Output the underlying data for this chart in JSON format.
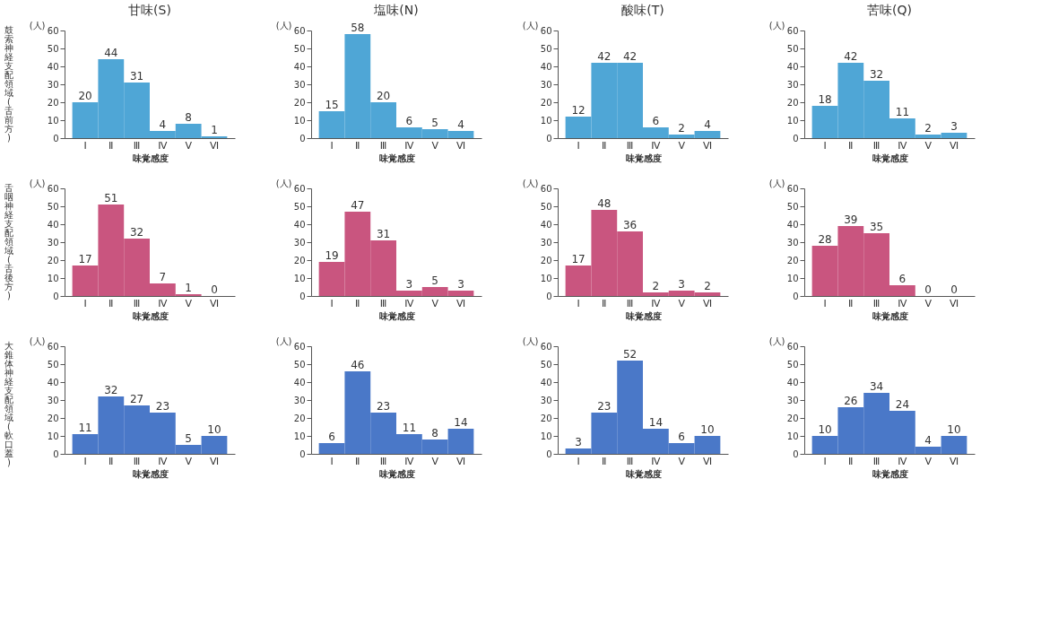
{
  "chart_data": [
    {
      "type": "bar",
      "title": "甘味(S)",
      "annotations": [
        "鼓索神経支配領域(舌前方)"
      ],
      "ylabel": "(人)",
      "xlabel": "味覚感度",
      "categories": [
        "Ⅰ",
        "Ⅱ",
        "Ⅲ",
        "Ⅳ",
        "Ⅴ",
        "Ⅵ"
      ],
      "values": [
        20,
        44,
        31,
        4,
        8,
        1
      ],
      "color": "#4fa6d6",
      "ylim": [
        0,
        60
      ],
      "yticks": [
        0,
        10,
        20,
        30,
        40,
        50,
        60
      ],
      "data_labels": true,
      "grid": false
    },
    {
      "type": "bar",
      "title": "塩味(N)",
      "ylabel": "(人)",
      "xlabel": "味覚感度",
      "categories": [
        "Ⅰ",
        "Ⅱ",
        "Ⅲ",
        "Ⅳ",
        "Ⅴ",
        "Ⅵ"
      ],
      "values": [
        15,
        58,
        20,
        6,
        5,
        4
      ],
      "color": "#4fa6d6",
      "ylim": [
        0,
        60
      ],
      "yticks": [
        0,
        10,
        20,
        30,
        40,
        50,
        60
      ],
      "data_labels": true,
      "grid": false
    },
    {
      "type": "bar",
      "title": "酸味(T)",
      "ylabel": "(人)",
      "xlabel": "味覚感度",
      "categories": [
        "Ⅰ",
        "Ⅱ",
        "Ⅲ",
        "Ⅳ",
        "Ⅴ",
        "Ⅵ"
      ],
      "values": [
        12,
        42,
        42,
        6,
        2,
        4
      ],
      "color": "#4fa6d6",
      "ylim": [
        0,
        60
      ],
      "yticks": [
        0,
        10,
        20,
        30,
        40,
        50,
        60
      ],
      "data_labels": true,
      "grid": false
    },
    {
      "type": "bar",
      "title": "苦味(Q)",
      "ylabel": "(人)",
      "xlabel": "味覚感度",
      "categories": [
        "Ⅰ",
        "Ⅱ",
        "Ⅲ",
        "Ⅳ",
        "Ⅴ",
        "Ⅵ"
      ],
      "values": [
        18,
        42,
        32,
        11,
        2,
        3
      ],
      "color": "#4fa6d6",
      "ylim": [
        0,
        60
      ],
      "yticks": [
        0,
        10,
        20,
        30,
        40,
        50,
        60
      ],
      "data_labels": true,
      "grid": false
    },
    {
      "type": "bar",
      "annotations": [
        "舌咽神経支配領域(舌後方)"
      ],
      "ylabel": "(人)",
      "xlabel": "味覚感度",
      "categories": [
        "Ⅰ",
        "Ⅱ",
        "Ⅲ",
        "Ⅳ",
        "Ⅴ",
        "Ⅵ"
      ],
      "values": [
        17,
        51,
        32,
        7,
        1,
        0
      ],
      "color": "#c9557f",
      "ylim": [
        0,
        60
      ],
      "yticks": [
        0,
        10,
        20,
        30,
        40,
        50,
        60
      ],
      "data_labels": true,
      "grid": false
    },
    {
      "type": "bar",
      "ylabel": "(人)",
      "xlabel": "味覚感度",
      "categories": [
        "Ⅰ",
        "Ⅱ",
        "Ⅲ",
        "Ⅳ",
        "Ⅴ",
        "Ⅵ"
      ],
      "values": [
        19,
        47,
        31,
        3,
        5,
        3
      ],
      "color": "#c9557f",
      "ylim": [
        0,
        60
      ],
      "yticks": [
        0,
        10,
        20,
        30,
        40,
        50,
        60
      ],
      "data_labels": true,
      "grid": false
    },
    {
      "type": "bar",
      "ylabel": "(人)",
      "xlabel": "味覚感度",
      "categories": [
        "Ⅰ",
        "Ⅱ",
        "Ⅲ",
        "Ⅳ",
        "Ⅴ",
        "Ⅵ"
      ],
      "values": [
        17,
        48,
        36,
        2,
        3,
        2
      ],
      "color": "#c9557f",
      "ylim": [
        0,
        60
      ],
      "yticks": [
        0,
        10,
        20,
        30,
        40,
        50,
        60
      ],
      "data_labels": true,
      "grid": false
    },
    {
      "type": "bar",
      "ylabel": "(人)",
      "xlabel": "味覚感度",
      "categories": [
        "Ⅰ",
        "Ⅱ",
        "Ⅲ",
        "Ⅳ",
        "Ⅴ",
        "Ⅵ"
      ],
      "values": [
        28,
        39,
        35,
        6,
        0,
        0
      ],
      "color": "#c9557f",
      "ylim": [
        0,
        60
      ],
      "yticks": [
        0,
        10,
        20,
        30,
        40,
        50,
        60
      ],
      "data_labels": true,
      "grid": false
    },
    {
      "type": "bar",
      "annotations": [
        "大錐体神経支配領域(軟口蓋)"
      ],
      "ylabel": "(人)",
      "xlabel": "味覚感度",
      "categories": [
        "Ⅰ",
        "Ⅱ",
        "Ⅲ",
        "Ⅳ",
        "Ⅴ",
        "Ⅵ"
      ],
      "values": [
        11,
        32,
        27,
        23,
        5,
        10
      ],
      "color": "#4a78c8",
      "ylim": [
        0,
        60
      ],
      "yticks": [
        0,
        10,
        20,
        30,
        40,
        50,
        60
      ],
      "data_labels": true,
      "grid": false
    },
    {
      "type": "bar",
      "ylabel": "(人)",
      "xlabel": "味覚感度",
      "categories": [
        "Ⅰ",
        "Ⅱ",
        "Ⅲ",
        "Ⅳ",
        "Ⅴ",
        "Ⅵ"
      ],
      "values": [
        6,
        46,
        23,
        11,
        8,
        14
      ],
      "color": "#4a78c8",
      "ylim": [
        0,
        60
      ],
      "yticks": [
        0,
        10,
        20,
        30,
        40,
        50,
        60
      ],
      "data_labels": true,
      "grid": false
    },
    {
      "type": "bar",
      "ylabel": "(人)",
      "xlabel": "味覚感度",
      "categories": [
        "Ⅰ",
        "Ⅱ",
        "Ⅲ",
        "Ⅳ",
        "Ⅴ",
        "Ⅵ"
      ],
      "values": [
        3,
        23,
        52,
        14,
        6,
        10
      ],
      "color": "#4a78c8",
      "ylim": [
        0,
        60
      ],
      "yticks": [
        0,
        10,
        20,
        30,
        40,
        50,
        60
      ],
      "data_labels": true,
      "grid": false
    },
    {
      "type": "bar",
      "ylabel": "(人)",
      "xlabel": "味覚感度",
      "categories": [
        "Ⅰ",
        "Ⅱ",
        "Ⅲ",
        "Ⅳ",
        "Ⅴ",
        "Ⅵ"
      ],
      "values": [
        10,
        26,
        34,
        24,
        4,
        10
      ],
      "color": "#4a78c8",
      "ylim": [
        0,
        60
      ],
      "yticks": [
        0,
        10,
        20,
        30,
        40,
        50,
        60
      ],
      "data_labels": true,
      "grid": false
    }
  ]
}
